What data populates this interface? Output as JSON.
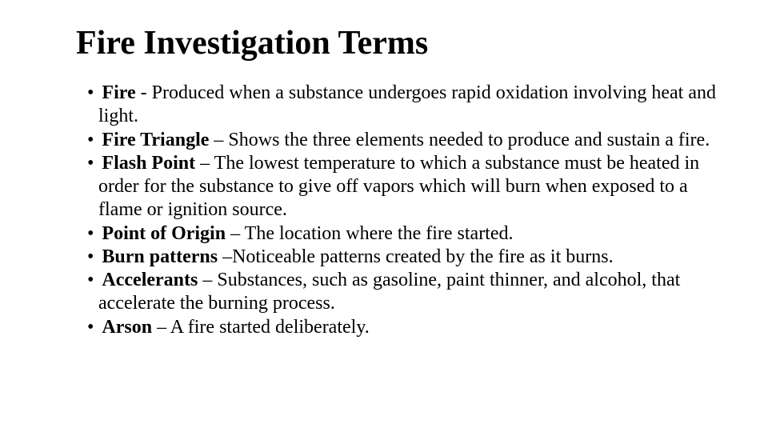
{
  "slide": {
    "title": "Fire Investigation Terms",
    "title_fontsize": 42,
    "body_fontsize": 24,
    "background_color": "#ffffff",
    "text_color": "#000000",
    "font_family": "Times New Roman",
    "bullet_char": "•",
    "terms": [
      {
        "term": "Fire",
        "sep": " - ",
        "definition": "Produced when a substance undergoes rapid oxidation involving heat and light."
      },
      {
        "term": "Fire Triangle",
        "sep": " – ",
        "definition": "Shows the three elements needed to produce and sustain a fire."
      },
      {
        "term": "Flash Point",
        "sep": " – ",
        "definition": "The lowest temperature to which a substance must be heated in order for the substance to give off vapors which will burn when exposed to a flame or ignition source."
      },
      {
        "term": "Point of Origin",
        "sep": " – ",
        "definition": "The location where the fire started."
      },
      {
        "term": "Burn patterns",
        "sep": " –",
        "definition": "Noticeable patterns created by the fire as it burns."
      },
      {
        "term": "Accelerants",
        "sep": " – ",
        "definition": "Substances, such as gasoline, paint thinner, and alcohol,  that accelerate the burning process."
      },
      {
        "term": "Arson",
        "sep": " – ",
        "definition": "A fire started deliberately."
      }
    ]
  }
}
